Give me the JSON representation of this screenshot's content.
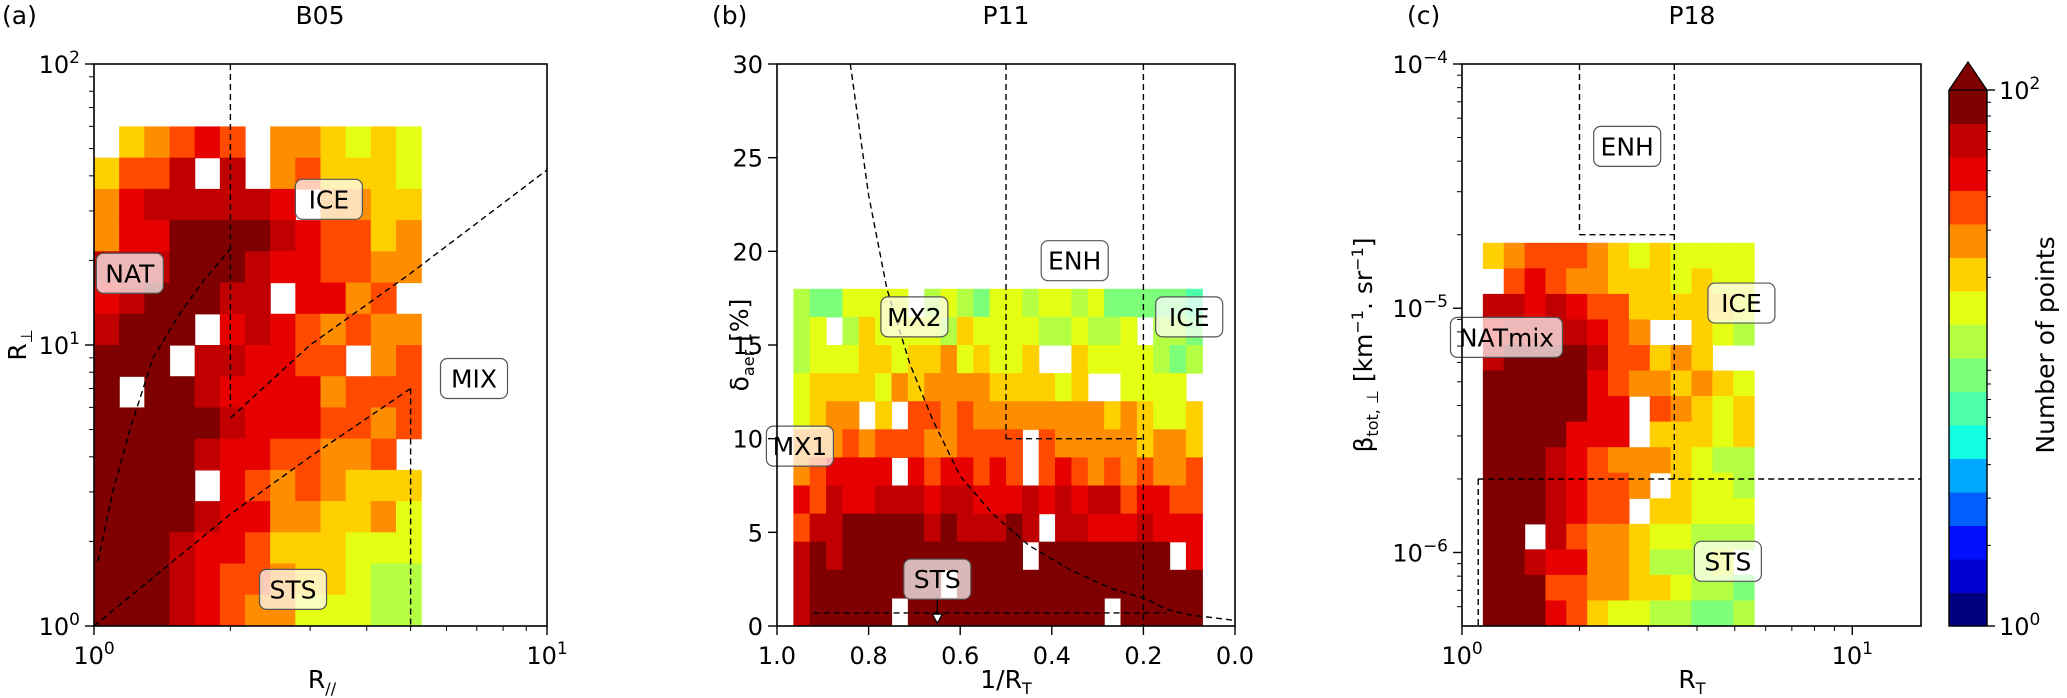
{
  "colors": {
    "colormap": [
      "#00007f",
      "#0000d0",
      "#0010ff",
      "#0060ff",
      "#00a8ff",
      "#13ffe3",
      "#4dffaa",
      "#7dff7a",
      "#b4ff43",
      "#e4ff13",
      "#ffd000",
      "#ff8d00",
      "#ff4a00",
      "#e70000",
      "#c00000",
      "#7f0000"
    ],
    "box_edge": "#555555"
  },
  "chart_data": [
    {
      "type": "heatmap",
      "panel_label": "(a)",
      "title": "B05",
      "xlabel": "R//",
      "ylabel": "R⊥",
      "xscale": "log",
      "yscale": "log",
      "xlim": [
        1,
        10
      ],
      "ylim": [
        1,
        100
      ],
      "x_ticks": [
        {
          "v": 1,
          "base": "10",
          "exp": "0"
        },
        {
          "v": 10,
          "base": "10",
          "exp": "1"
        }
      ],
      "y_ticks": [
        {
          "v": 1,
          "base": "10",
          "exp": "0"
        },
        {
          "v": 10,
          "base": "10",
          "exp": "1"
        },
        {
          "v": 100,
          "base": "10",
          "exp": "2"
        }
      ],
      "boundaries": [
        {
          "style": "dashed",
          "points": [
            [
              2,
              100
            ],
            [
              2,
              6
            ]
          ]
        },
        {
          "style": "dashed",
          "points": [
            [
              1.02,
              1.7
            ],
            [
              1.1,
              3
            ],
            [
              1.2,
              5
            ],
            [
              1.35,
              9
            ],
            [
              1.55,
              13
            ],
            [
              1.75,
              17
            ],
            [
              2,
              22
            ]
          ]
        },
        {
          "style": "dashed",
          "points": [
            [
              2,
              5.5
            ],
            [
              3,
              10
            ],
            [
              5,
              18
            ],
            [
              10,
              42
            ]
          ]
        },
        {
          "style": "dashed",
          "points": [
            [
              1,
              1
            ],
            [
              2,
              2.5
            ],
            [
              3,
              4
            ],
            [
              5,
              7
            ]
          ]
        },
        {
          "style": "dashed",
          "points": [
            [
              5,
              7
            ],
            [
              5,
              1
            ]
          ]
        }
      ],
      "regions": [
        {
          "label": "NAT",
          "x": 1.2,
          "y": 18
        },
        {
          "label": "ICE",
          "x": 3.3,
          "y": 33
        },
        {
          "label": "MIX",
          "x": 6.9,
          "y": 7.6
        },
        {
          "label": "STS",
          "x": 2.75,
          "y": 1.35
        }
      ],
      "density": {
        "grid": [
          18,
          18
        ],
        "blobs": [
          {
            "points": [
              [
                1.02,
                1.2
              ],
              [
                1.06,
                1.8
              ],
              [
                1.1,
                2.6
              ],
              [
                1.16,
                3.8
              ],
              [
                1.24,
                5.5
              ],
              [
                1.33,
                8
              ],
              [
                1.45,
                12
              ],
              [
                1.6,
                16
              ],
              [
                1.78,
                22
              ]
            ],
            "width": 0.04,
            "peak": 100,
            "decay": 0.14
          },
          {
            "points": [
              [
                1.1,
                1.6
              ],
              [
                1.5,
                2.4
              ],
              [
                2.1,
                3.3
              ],
              [
                3,
                4.4
              ],
              [
                4.4,
                5.6
              ]
            ],
            "width": 0.06,
            "peak": 25,
            "decay": 0.25
          },
          {
            "points": [
              [
                2,
                6
              ],
              [
                2.6,
                9
              ],
              [
                3.3,
                12
              ],
              [
                4.2,
                17
              ],
              [
                5.4,
                25
              ]
            ],
            "width": 0.08,
            "peak": 6,
            "decay": 0.35
          }
        ],
        "limit_x": [
          1,
          5.6
        ],
        "limit_y": [
          1,
          55
        ],
        "threshold": 1.3
      }
    },
    {
      "type": "heatmap",
      "panel_label": "(b)",
      "title": "P11",
      "xlabel": "1/RT",
      "ylabel": "δaer [%]",
      "xscale": "linear",
      "yscale": "linear",
      "xlim": [
        1.0,
        0.0
      ],
      "ylim": [
        0,
        30
      ],
      "x_ticks": [
        {
          "v": 1.0,
          "label": "1.0"
        },
        {
          "v": 0.8,
          "label": "0.8"
        },
        {
          "v": 0.6,
          "label": "0.6"
        },
        {
          "v": 0.4,
          "label": "0.4"
        },
        {
          "v": 0.2,
          "label": "0.2"
        },
        {
          "v": 0.0,
          "label": "0.0"
        }
      ],
      "y_ticks": [
        {
          "v": 0,
          "label": "0"
        },
        {
          "v": 5,
          "label": "5"
        },
        {
          "v": 10,
          "label": "10"
        },
        {
          "v": 15,
          "label": "15"
        },
        {
          "v": 20,
          "label": "20"
        },
        {
          "v": 25,
          "label": "25"
        },
        {
          "v": 30,
          "label": "30"
        }
      ],
      "boundaries": [
        {
          "style": "dashed",
          "points": [
            [
              0.84,
              30
            ],
            [
              0.8,
              23
            ],
            [
              0.76,
              18
            ],
            [
              0.71,
              14
            ],
            [
              0.66,
              11
            ],
            [
              0.6,
              8
            ],
            [
              0.53,
              6
            ],
            [
              0.45,
              4.3
            ],
            [
              0.36,
              3
            ],
            [
              0.27,
              2
            ],
            [
              0.2,
              1.5
            ],
            [
              0.15,
              0.9
            ],
            [
              0.1,
              0.6
            ],
            [
              0.0,
              0.3
            ]
          ]
        },
        {
          "style": "dashed",
          "points": [
            [
              0.5,
              30
            ],
            [
              0.5,
              10
            ]
          ]
        },
        {
          "style": "dashed",
          "points": [
            [
              0.5,
              10
            ],
            [
              0.2,
              10
            ]
          ]
        },
        {
          "style": "dashed",
          "points": [
            [
              0.2,
              30
            ],
            [
              0.2,
              0
            ]
          ]
        },
        {
          "style": "dotted",
          "points": [
            [
              0.92,
              0.7
            ],
            [
              0.15,
              0.7
            ]
          ]
        }
      ],
      "arrow": {
        "x": 0.65,
        "from": 1.6,
        "to": 0.15
      },
      "regions": [
        {
          "label": "MX2",
          "x": 0.7,
          "y": 16.5
        },
        {
          "label": "ENH",
          "x": 0.35,
          "y": 19.5
        },
        {
          "label": "ICE",
          "x": 0.1,
          "y": 16.5
        },
        {
          "label": "MX1",
          "x": 0.95,
          "y": 9.6
        },
        {
          "label": "STS",
          "x": 0.65,
          "y": 2.5
        }
      ],
      "density": {
        "grid": [
          28,
          20
        ],
        "blobs": [
          {
            "points": [
              [
                0.85,
                1.2
              ],
              [
                0.8,
                2
              ],
              [
                0.75,
                2.3
              ],
              [
                0.7,
                2.4
              ],
              [
                0.65,
                2.2
              ],
              [
                0.6,
                1.8
              ],
              [
                0.5,
                1.4
              ],
              [
                0.4,
                1.2
              ],
              [
                0.3,
                1.1
              ],
              [
                0.2,
                0.8
              ]
            ],
            "width": 0.06,
            "peak": 100,
            "decay": 0.12
          },
          {
            "points": [
              [
                0.9,
                4
              ],
              [
                0.8,
                6
              ],
              [
                0.7,
                8
              ],
              [
                0.6,
                9
              ],
              [
                0.5,
                9
              ],
              [
                0.4,
                7
              ],
              [
                0.3,
                5
              ],
              [
                0.2,
                3.5
              ]
            ],
            "width": 0.12,
            "peak": 10,
            "decay": 0.35
          },
          {
            "points": [
              [
                0.75,
                14
              ],
              [
                0.6,
                12
              ],
              [
                0.45,
                13
              ],
              [
                0.4,
                16
              ]
            ],
            "width": 0.08,
            "peak": 5,
            "decay": 0.4
          }
        ],
        "limit_x": [
          0.08,
          0.96
        ],
        "limit_y": [
          0,
          17.5
        ],
        "threshold": 1.3
      }
    },
    {
      "type": "heatmap",
      "panel_label": "(c)",
      "title": "P18",
      "xlabel": "RT",
      "ylabel": "βtot,⊥ [km⁻¹. sr⁻¹]",
      "xscale": "log",
      "yscale": "log",
      "xlim": [
        1,
        15
      ],
      "ylim": [
        5e-07,
        0.0001
      ],
      "x_ticks": [
        {
          "v": 1,
          "base": "10",
          "exp": "0"
        },
        {
          "v": 10,
          "base": "10",
          "exp": "1"
        }
      ],
      "y_ticks": [
        {
          "v": 1e-06,
          "base": "10",
          "exp": "−6"
        },
        {
          "v": 1e-05,
          "base": "10",
          "exp": "−5"
        },
        {
          "v": 0.0001,
          "base": "10",
          "exp": "−4"
        }
      ],
      "boundaries": [
        {
          "style": "dashed",
          "points": [
            [
              2,
              0.0001
            ],
            [
              2,
              2e-05
            ]
          ]
        },
        {
          "style": "dashed",
          "points": [
            [
              2,
              2e-05
            ],
            [
              3.5,
              2e-05
            ]
          ]
        },
        {
          "style": "dashed",
          "points": [
            [
              3.5,
              0.0001
            ],
            [
              3.5,
              2e-06
            ]
          ]
        },
        {
          "style": "dashed",
          "points": [
            [
              1.1,
              2e-06
            ],
            [
              15,
              2e-06
            ]
          ]
        },
        {
          "style": "dashed",
          "points": [
            [
              1.1,
              2e-06
            ],
            [
              1.1,
              5e-07
            ]
          ]
        }
      ],
      "regions": [
        {
          "label": "ENH",
          "x": 2.65,
          "y": 4.6e-05
        },
        {
          "label": "ICE",
          "x": 5.2,
          "y": 1.05e-05
        },
        {
          "label": "NATmix",
          "x": 1.3,
          "y": 7.6e-06
        },
        {
          "label": "STS",
          "x": 4.8,
          "y": 9.2e-07
        }
      ],
      "density": {
        "grid": [
          22,
          22
        ],
        "blobs": [
          {
            "points": [
              [
                1.12,
                6e-07
              ],
              [
                1.15,
                9e-07
              ],
              [
                1.2,
                1.4e-06
              ],
              [
                1.25,
                2.2e-06
              ],
              [
                1.35,
                3.3e-06
              ],
              [
                1.5,
                4.8e-06
              ]
            ],
            "width": 0.05,
            "peak": 100,
            "decay": 0.12
          },
          {
            "points": [
              [
                1.3,
                2e-06
              ],
              [
                1.8,
                3.5e-06
              ],
              [
                2.5,
                5e-06
              ],
              [
                3.5,
                6e-06
              ],
              [
                4.5,
                8e-06
              ]
            ],
            "width": 0.1,
            "peak": 10,
            "decay": 0.35
          },
          {
            "points": [
              [
                2,
                1e-06
              ],
              [
                3,
                1.4e-06
              ],
              [
                4.2,
                1.6e-06
              ],
              [
                5,
                2e-06
              ]
            ],
            "width": 0.08,
            "peak": 5,
            "decay": 0.4
          }
        ],
        "limit_x": [
          1.08,
          5.8
        ],
        "limit_y": [
          5e-07,
          1.8e-05
        ],
        "threshold": 1.3
      }
    }
  ],
  "colorbar": {
    "label": "Number of points",
    "scale": "log",
    "lim": [
      1,
      100
    ],
    "ticks": [
      {
        "v": 1,
        "base": "10",
        "exp": "0"
      },
      {
        "v": 100,
        "base": "10",
        "exp": "2"
      }
    ]
  }
}
